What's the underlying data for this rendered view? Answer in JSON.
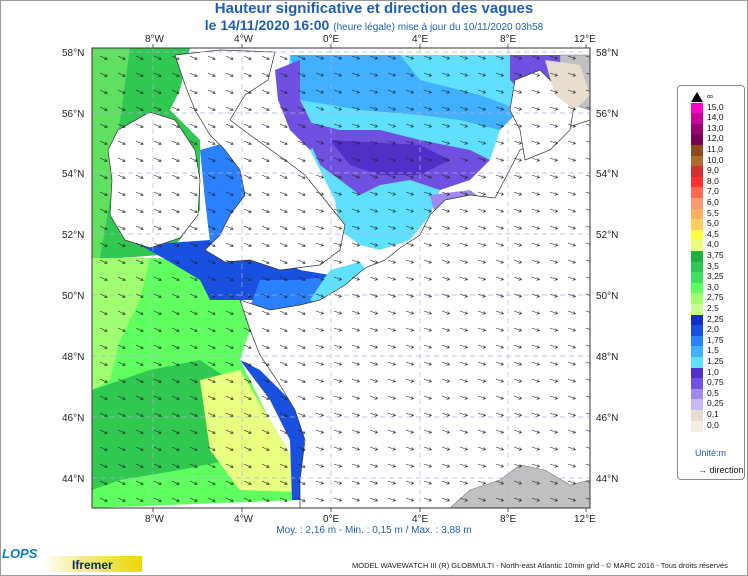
{
  "title": "Hauteur significative et direction des vagues",
  "subtitle_main": "le 14/11/2020 16:00",
  "subtitle_note": "(heure légale) mise à jour du 10/11/2020 03h58",
  "lon_labels": [
    "8°W",
    "4°W",
    "0°E",
    "4°E",
    "8°E",
    "12°E"
  ],
  "lat_labels": [
    "58°N",
    "56°N",
    "54°N",
    "52°N",
    "50°N",
    "48°N",
    "46°N",
    "44°N"
  ],
  "stats": "Moy. : 2,16 m  -  Min. : 0,15 m / Max. : 3,88 m",
  "legend": {
    "labels": [
      "∞",
      "15,0",
      "14,0",
      "13,0",
      "12,0",
      "11,0",
      "10,0",
      "9,0",
      "8,0",
      "7,0",
      "6,0",
      "5,5",
      "5,0",
      "4,5",
      "4,0",
      "3,75",
      "3,5",
      "3,25",
      "3,0",
      "2,75",
      "2,5",
      "2,25",
      "2,0",
      "1,75",
      "1,5",
      "1,25",
      "1,0",
      "0,75",
      "0,5",
      "0,25",
      "0,1",
      "0,0"
    ],
    "colors": [
      "#000000",
      "#ff00c8",
      "#c8009c",
      "#9c0070",
      "#780050",
      "#8c4a1e",
      "#b06a30",
      "#d03030",
      "#ff3030",
      "#ff6a50",
      "#ff9a70",
      "#ffb060",
      "#ffd060",
      "#ffff40",
      "#e8ff80",
      "#20b040",
      "#30c850",
      "#40e060",
      "#60ff60",
      "#a0ff70",
      "#c8ff90",
      "#1030c8",
      "#1a50e0",
      "#2a80ff",
      "#40b0ff",
      "#60e0ff",
      "#5030c8",
      "#7050e0",
      "#a088f0",
      "#c8b8ff",
      "#e8dccc",
      "#f4ece0"
    ],
    "unit": "Unité:m",
    "direction": "direction"
  },
  "footer": "MODEL WAVEWATCH III (R) GLOBMULTI - North-east Atlantic 10min grid - © MARC 2016 - Tous droits réservés",
  "logos": {
    "lops": "LOPS",
    "ifremer": "Ifremer"
  }
}
